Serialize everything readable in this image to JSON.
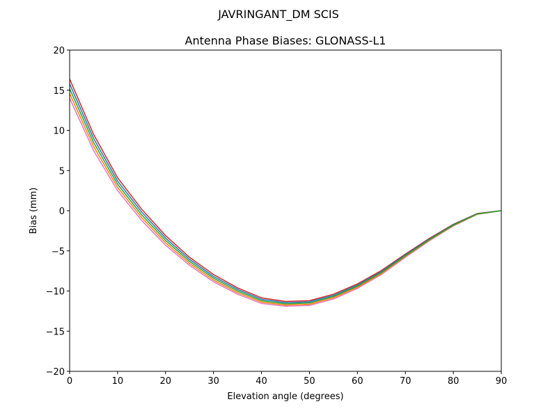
{
  "chart_data": {
    "type": "line",
    "suptitle": "JAVRINGANT_DM   SCIS",
    "title": "Antenna Phase Biases: GLONASS-L1",
    "xlabel": "Elevation angle (degrees)",
    "ylabel": "Bias (mm)",
    "xlim": [
      0,
      90
    ],
    "ylim": [
      -20,
      20
    ],
    "xticks": [
      0,
      10,
      20,
      30,
      40,
      50,
      60,
      70,
      80,
      90
    ],
    "yticks": [
      -20,
      -15,
      -10,
      -5,
      0,
      5,
      10,
      15,
      20
    ],
    "grid": false,
    "x": [
      0,
      5,
      10,
      15,
      20,
      25,
      30,
      35,
      40,
      45,
      50,
      55,
      60,
      65,
      70,
      75,
      80,
      85,
      90
    ],
    "series": [
      {
        "name": "curve-1",
        "color": "#e377c2",
        "values": [
          14.0,
          7.5,
          2.5,
          -1.2,
          -4.3,
          -6.8,
          -8.85,
          -10.4,
          -11.55,
          -11.9,
          -11.8,
          -11.0,
          -9.68,
          -7.95,
          -5.8,
          -3.75,
          -1.9,
          -0.45,
          0
        ]
      },
      {
        "name": "curve-2",
        "color": "#d62728",
        "values": [
          16.4,
          9.5,
          4.1,
          0.2,
          -3.1,
          -5.8,
          -7.95,
          -9.6,
          -10.85,
          -11.3,
          -11.2,
          -10.4,
          -9.12,
          -7.45,
          -5.4,
          -3.45,
          -1.7,
          -0.35,
          0
        ]
      },
      {
        "name": "curve-3",
        "color": "#ff7f0e",
        "values": [
          14.6,
          8.0,
          2.9,
          -0.85,
          -4.0,
          -6.55,
          -8.63,
          -10.2,
          -11.38,
          -11.75,
          -11.65,
          -10.85,
          -9.54,
          -7.83,
          -5.7,
          -3.68,
          -1.85,
          -0.43,
          0
        ]
      },
      {
        "name": "curve-4",
        "color": "#1f77b4",
        "values": [
          15.8,
          9.0,
          3.7,
          -0.15,
          -3.4,
          -6.05,
          -8.18,
          -9.8,
          -11.03,
          -11.45,
          -11.35,
          -10.55,
          -9.26,
          -7.58,
          -5.5,
          -3.53,
          -1.75,
          -0.38,
          0
        ]
      },
      {
        "name": "curve-5",
        "color": "#2ca02c",
        "values": [
          15.2,
          8.5,
          3.3,
          -0.5,
          -3.7,
          -6.3,
          -8.4,
          -10.0,
          -11.2,
          -11.6,
          -11.5,
          -10.7,
          -9.4,
          -7.7,
          -5.6,
          -3.6,
          -1.8,
          -0.4,
          0
        ]
      }
    ]
  }
}
